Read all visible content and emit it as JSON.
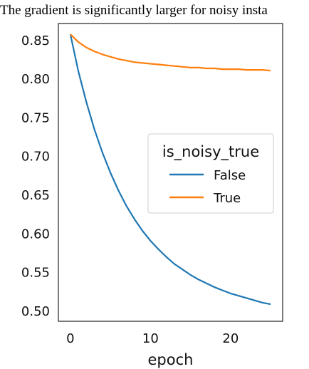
{
  "caption": "The gradient is significantly larger for noisy insta",
  "chart_data": {
    "type": "line",
    "xlabel": "epoch",
    "ylabel": "",
    "xlim": [
      -1.5,
      26.5
    ],
    "ylim": [
      0.487,
      0.872
    ],
    "xticks": [
      0,
      10,
      20
    ],
    "xtick_labels": [
      "0",
      "10",
      "20"
    ],
    "yticks": [
      0.5,
      0.55,
      0.6,
      0.65,
      0.7,
      0.75,
      0.8,
      0.85
    ],
    "ytick_labels": [
      "0.50",
      "0.55",
      "0.60",
      "0.65",
      "0.70",
      "0.75",
      "0.80",
      "0.85"
    ],
    "grid": false,
    "legend": {
      "title": "is_noisy_true",
      "placement": "center-right"
    },
    "x": [
      0,
      1,
      2,
      3,
      4,
      5,
      6,
      7,
      8,
      9,
      10,
      11,
      12,
      13,
      14,
      15,
      16,
      17,
      18,
      19,
      20,
      21,
      22,
      23,
      24,
      25
    ],
    "series": [
      {
        "name": "False",
        "color": "#1f77b4",
        "values": [
          0.858,
          0.81,
          0.77,
          0.735,
          0.705,
          0.679,
          0.656,
          0.636,
          0.619,
          0.604,
          0.591,
          0.58,
          0.57,
          0.561,
          0.554,
          0.547,
          0.541,
          0.536,
          0.531,
          0.527,
          0.523,
          0.52,
          0.517,
          0.514,
          0.511,
          0.509
        ]
      },
      {
        "name": "True",
        "color": "#ff7f0e",
        "values": [
          0.858,
          0.848,
          0.841,
          0.836,
          0.832,
          0.829,
          0.826,
          0.824,
          0.822,
          0.821,
          0.82,
          0.819,
          0.818,
          0.817,
          0.816,
          0.815,
          0.815,
          0.814,
          0.814,
          0.813,
          0.813,
          0.813,
          0.812,
          0.812,
          0.812,
          0.811
        ]
      }
    ]
  }
}
